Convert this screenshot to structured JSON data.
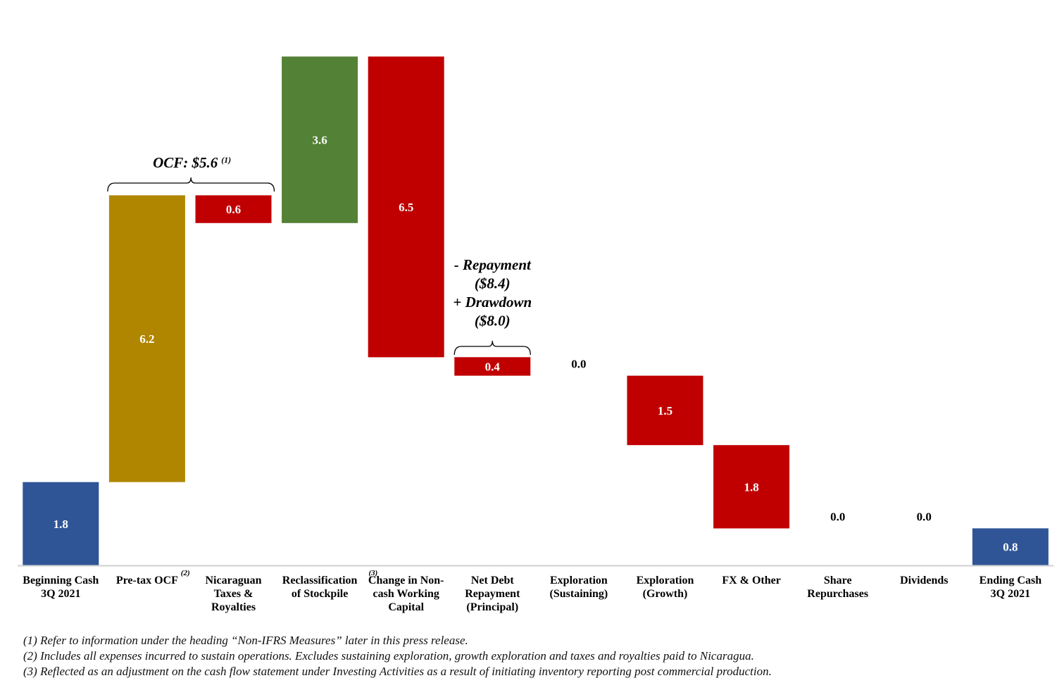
{
  "chart_data": {
    "type": "waterfall",
    "categories": [
      [
        "Beginning Cash",
        "3Q 2021"
      ],
      [
        "Pre-tax OCF"
      ],
      [
        "Nicaraguan",
        "Taxes &",
        "Royalties"
      ],
      [
        "Reclassification",
        "of Stockpile"
      ],
      [
        "Change in Non-",
        "cash Working",
        "Capital"
      ],
      [
        "Net Debt",
        "Repayment",
        "(Principal)"
      ],
      [
        "Exploration",
        "(Sustaining)"
      ],
      [
        "Exploration",
        "(Growth)"
      ],
      [
        "FX & Other"
      ],
      [
        "Share",
        "Repurchases"
      ],
      [
        "Dividends"
      ],
      [
        "Ending Cash",
        "3Q 2021"
      ]
    ],
    "category_superscripts": [
      "",
      "(2)",
      "",
      "(3)",
      "",
      "",
      "",
      "",
      "",
      "",
      "",
      ""
    ],
    "values": [
      1.8,
      6.2,
      -0.6,
      3.6,
      -6.5,
      -0.4,
      0.0,
      -1.5,
      -1.8,
      0.0,
      0.0,
      0.8
    ],
    "data_labels": [
      "1.8",
      "6.2",
      "0.6",
      "3.6",
      "6.5",
      "0.4",
      "0.0",
      "1.5",
      "1.8",
      "0.0",
      "0.0",
      "0.8"
    ],
    "bar_kinds": [
      "total",
      "increase",
      "decrease",
      "increase",
      "decrease",
      "decrease",
      "decrease",
      "decrease",
      "decrease",
      "decrease",
      "decrease",
      "total"
    ],
    "colors": {
      "total": "#2F5597",
      "pretax": "#B08600",
      "increase": "#538135",
      "decrease": "#C00000",
      "axis": "#D0D0D0",
      "bracket": "#000000"
    },
    "bar_color_keys": [
      "total",
      "pretax",
      "decrease",
      "increase",
      "decrease",
      "decrease",
      "decrease",
      "decrease",
      "decrease",
      "decrease",
      "decrease",
      "total"
    ],
    "annotations": {
      "ocf": {
        "text": "OCF: $5.6",
        "superscript": "(1)",
        "bracket_from": 1,
        "bracket_to": 2
      },
      "debt": {
        "lines": [
          "- Repayment",
          "($8.4)",
          "+ Drawdown",
          "($8.0)"
        ],
        "bracket_from": 5,
        "bracket_to": 5
      }
    },
    "ylim": [
      0,
      11
    ],
    "grid": false,
    "legend": "none"
  },
  "footnotes": [
    "(1) Refer to information under the heading “Non-IFRS Measures” later in this press release.",
    "(2) Includes all expenses incurred to sustain operations. Excludes sustaining exploration, growth exploration and taxes and royalties paid to Nicaragua.",
    "(3) Reflected as an adjustment on the cash flow statement under Investing Activities  as a result of initiating inventory reporting post commercial production."
  ]
}
